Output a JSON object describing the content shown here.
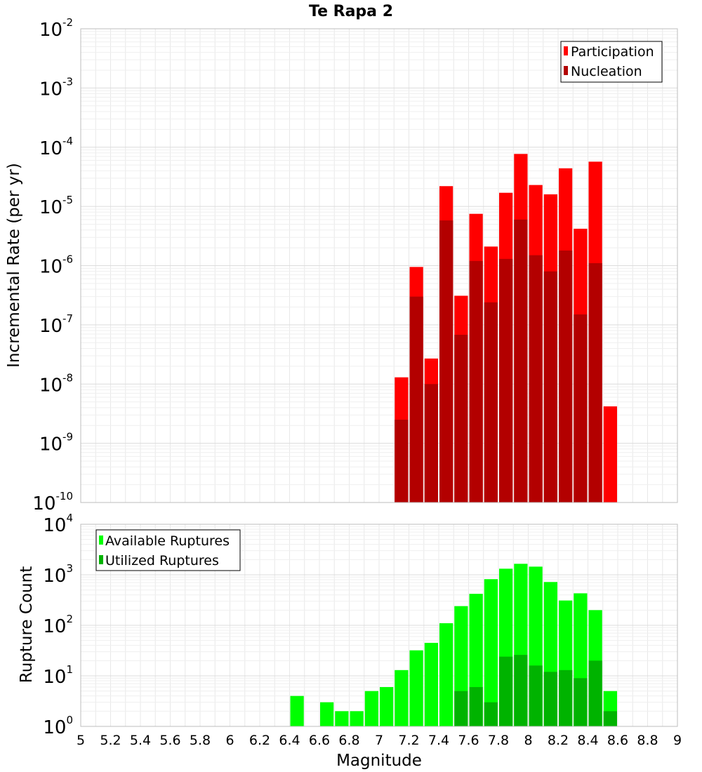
{
  "title": "Te Rapa 2",
  "chart_data": [
    {
      "type": "bar",
      "name": "rate",
      "ylabel": "Incremental Rate (per yr)",
      "yscale": "log",
      "ylim_exp": [
        -10,
        -2
      ],
      "xlim": [
        5,
        9
      ],
      "grid": true,
      "legend_position": "top-right",
      "legend": [
        "Participation",
        "Nucleation"
      ],
      "colors": {
        "Participation": "#ff0000",
        "Nucleation": "#b30000"
      },
      "x": [
        7.15,
        7.25,
        7.35,
        7.45,
        7.55,
        7.65,
        7.75,
        7.85,
        7.95,
        8.05,
        8.15,
        8.25,
        8.35,
        8.45,
        8.55
      ],
      "series": [
        {
          "name": "Participation",
          "values": [
            1.3e-08,
            9.5e-07,
            2.7e-08,
            2.2e-05,
            3.1e-07,
            7.5e-06,
            2.1e-06,
            1.7e-05,
            7.7e-05,
            2.3e-05,
            1.6e-05,
            4.4e-05,
            4.2e-06,
            5.7e-05,
            4.2e-09
          ]
        },
        {
          "name": "Nucleation",
          "values": [
            2.5e-09,
            3e-07,
            1e-08,
            5.8e-06,
            6.8e-08,
            1.2e-06,
            2.4e-07,
            1.3e-06,
            6e-06,
            1.5e-06,
            8e-07,
            1.8e-06,
            1.5e-07,
            1.1e-06,
            null
          ]
        }
      ]
    },
    {
      "type": "bar",
      "name": "ruptures",
      "ylabel": "Rupture Count",
      "xlabel": "Magnitude",
      "yscale": "log",
      "ylim_exp": [
        0,
        4
      ],
      "xlim": [
        5,
        9
      ],
      "grid": true,
      "legend_position": "top-left",
      "legend": [
        "Available Ruptures",
        "Utilized Ruptures"
      ],
      "colors": {
        "Available Ruptures": "#00ff00",
        "Utilized Ruptures": "#00b300"
      },
      "x": [
        6.45,
        6.65,
        6.75,
        6.85,
        6.95,
        7.05,
        7.15,
        7.25,
        7.35,
        7.45,
        7.55,
        7.65,
        7.75,
        7.85,
        7.95,
        8.05,
        8.15,
        8.25,
        8.35,
        8.45,
        8.55
      ],
      "series": [
        {
          "name": "Available Ruptures",
          "values": [
            4,
            3,
            2,
            2,
            5,
            6,
            13,
            32,
            45,
            110,
            240,
            420,
            820,
            1320,
            1650,
            1450,
            720,
            310,
            430,
            200,
            5
          ]
        },
        {
          "name": "Utilized Ruptures",
          "values": [
            null,
            null,
            null,
            null,
            null,
            null,
            1,
            1,
            1,
            1,
            5,
            6,
            3,
            24,
            26,
            16,
            12,
            13,
            9,
            20,
            2
          ]
        }
      ]
    }
  ],
  "x_ticks": [
    "5",
    "5.2",
    "5.4",
    "5.6",
    "5.8",
    "6",
    "6.2",
    "6.4",
    "6.6",
    "6.8",
    "7",
    "7.2",
    "7.4",
    "7.6",
    "7.8",
    "8",
    "8.2",
    "8.4",
    "8.6",
    "8.8",
    "9"
  ]
}
